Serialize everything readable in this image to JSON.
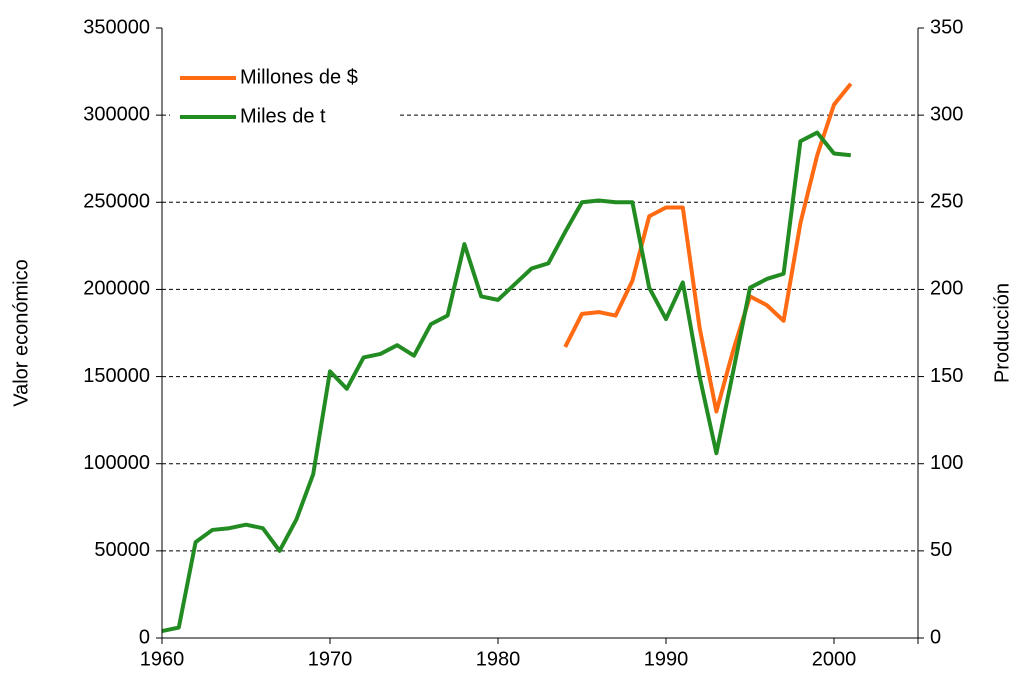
{
  "chart_data": {
    "type": "line",
    "y_label": "Valor económico",
    "y2_label": "Producción",
    "x": [
      1960,
      1961,
      1962,
      1963,
      1964,
      1965,
      1966,
      1967,
      1968,
      1969,
      1970,
      1971,
      1972,
      1973,
      1974,
      1975,
      1976,
      1977,
      1978,
      1979,
      1980,
      1981,
      1982,
      1983,
      1984,
      1985,
      1986,
      1987,
      1988,
      1989,
      1990,
      1991,
      1992,
      1993,
      1994,
      1995,
      1996,
      1997,
      1998,
      1999,
      2000,
      2001
    ],
    "series": [
      {
        "name": "Millones de $",
        "color": "#ff6a13",
        "values": [
          null,
          null,
          null,
          null,
          null,
          null,
          null,
          null,
          null,
          null,
          null,
          null,
          null,
          null,
          null,
          null,
          null,
          null,
          null,
          null,
          null,
          null,
          null,
          null,
          167000,
          186000,
          187000,
          185000,
          205000,
          242000,
          247000,
          247000,
          178000,
          130000,
          165000,
          196000,
          191000,
          182000,
          238000,
          277000,
          306000,
          318000
        ]
      },
      {
        "name": "Miles de t",
        "color": "#228b22",
        "axis": "y2",
        "values": [
          4,
          6,
          55,
          62,
          63,
          65,
          63,
          50,
          68,
          94,
          153,
          143,
          161,
          163,
          168,
          162,
          180,
          185,
          226,
          196,
          194,
          203,
          212,
          215,
          233,
          250,
          251,
          250,
          250,
          201,
          183,
          204,
          150,
          106,
          153,
          201,
          206,
          209,
          285,
          290,
          278,
          277
        ]
      }
    ],
    "xlim": [
      1960,
      2005
    ],
    "xticks": [
      1960,
      1970,
      1980,
      1990,
      2000
    ],
    "ylim": [
      0,
      350000
    ],
    "yticks": [
      0,
      50000,
      100000,
      150000,
      200000,
      250000,
      300000,
      350000
    ],
    "y2lim": [
      0,
      350
    ],
    "y2ticks": [
      0,
      50,
      100,
      150,
      200,
      250,
      300,
      350
    ],
    "grid": true,
    "legend": "upper left"
  }
}
